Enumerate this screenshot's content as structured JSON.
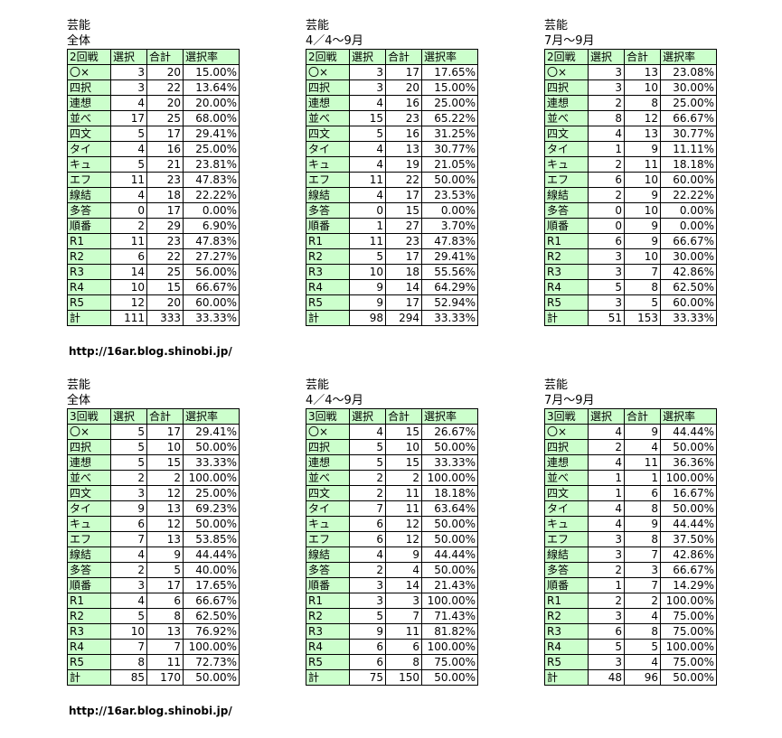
{
  "blocks": [
    {
      "genre": "芸能",
      "period": "全体",
      "header": [
        "2回戦",
        "選択",
        "合計",
        "選択率"
      ],
      "rows": [
        [
          "〇×",
          "3",
          "20",
          "15.00%"
        ],
        [
          "四択",
          "3",
          "22",
          "13.64%"
        ],
        [
          "連想",
          "4",
          "20",
          "20.00%"
        ],
        [
          "並べ",
          "17",
          "25",
          "68.00%"
        ],
        [
          "四文",
          "5",
          "17",
          "29.41%"
        ],
        [
          "タイ",
          "4",
          "16",
          "25.00%"
        ],
        [
          "キュ",
          "5",
          "21",
          "23.81%"
        ],
        [
          "エフ",
          "11",
          "23",
          "47.83%"
        ],
        [
          "線結",
          "4",
          "18",
          "22.22%"
        ],
        [
          "多答",
          "0",
          "17",
          "0.00%"
        ],
        [
          "順番",
          "2",
          "29",
          "6.90%"
        ],
        [
          "R1",
          "11",
          "23",
          "47.83%"
        ],
        [
          "R2",
          "6",
          "22",
          "27.27%"
        ],
        [
          "R3",
          "14",
          "25",
          "56.00%"
        ],
        [
          "R4",
          "10",
          "15",
          "66.67%"
        ],
        [
          "R5",
          "12",
          "20",
          "60.00%"
        ],
        [
          "計",
          "111",
          "333",
          "33.33%"
        ]
      ]
    },
    {
      "genre": "芸能",
      "period": "4／4～9月",
      "header": [
        "2回戦",
        "選択",
        "合計",
        "選択率"
      ],
      "rows": [
        [
          "〇×",
          "3",
          "17",
          "17.65%"
        ],
        [
          "四択",
          "3",
          "20",
          "15.00%"
        ],
        [
          "連想",
          "4",
          "16",
          "25.00%"
        ],
        [
          "並べ",
          "15",
          "23",
          "65.22%"
        ],
        [
          "四文",
          "5",
          "16",
          "31.25%"
        ],
        [
          "タイ",
          "4",
          "13",
          "30.77%"
        ],
        [
          "キュ",
          "4",
          "19",
          "21.05%"
        ],
        [
          "エフ",
          "11",
          "22",
          "50.00%"
        ],
        [
          "線結",
          "4",
          "17",
          "23.53%"
        ],
        [
          "多答",
          "0",
          "15",
          "0.00%"
        ],
        [
          "順番",
          "1",
          "27",
          "3.70%"
        ],
        [
          "R1",
          "11",
          "23",
          "47.83%"
        ],
        [
          "R2",
          "5",
          "17",
          "29.41%"
        ],
        [
          "R3",
          "10",
          "18",
          "55.56%"
        ],
        [
          "R4",
          "9",
          "14",
          "64.29%"
        ],
        [
          "R5",
          "9",
          "17",
          "52.94%"
        ],
        [
          "計",
          "98",
          "294",
          "33.33%"
        ]
      ]
    },
    {
      "genre": "芸能",
      "period": "7月～9月",
      "header": [
        "2回戦",
        "選択",
        "合計",
        "選択率"
      ],
      "rows": [
        [
          "〇×",
          "3",
          "13",
          "23.08%"
        ],
        [
          "四択",
          "3",
          "10",
          "30.00%"
        ],
        [
          "連想",
          "2",
          "8",
          "25.00%"
        ],
        [
          "並べ",
          "8",
          "12",
          "66.67%"
        ],
        [
          "四文",
          "4",
          "13",
          "30.77%"
        ],
        [
          "タイ",
          "1",
          "9",
          "11.11%"
        ],
        [
          "キュ",
          "2",
          "11",
          "18.18%"
        ],
        [
          "エフ",
          "6",
          "10",
          "60.00%"
        ],
        [
          "線結",
          "2",
          "9",
          "22.22%"
        ],
        [
          "多答",
          "0",
          "10",
          "0.00%"
        ],
        [
          "順番",
          "0",
          "9",
          "0.00%"
        ],
        [
          "R1",
          "6",
          "9",
          "66.67%"
        ],
        [
          "R2",
          "3",
          "10",
          "30.00%"
        ],
        [
          "R3",
          "3",
          "7",
          "42.86%"
        ],
        [
          "R4",
          "5",
          "8",
          "62.50%"
        ],
        [
          "R5",
          "3",
          "5",
          "60.00%"
        ],
        [
          "計",
          "51",
          "153",
          "33.33%"
        ]
      ]
    },
    {
      "genre": "芸能",
      "period": "全体",
      "header": [
        "3回戦",
        "選択",
        "合計",
        "選択率"
      ],
      "rows": [
        [
          "〇×",
          "5",
          "17",
          "29.41%"
        ],
        [
          "四択",
          "5",
          "10",
          "50.00%"
        ],
        [
          "連想",
          "5",
          "15",
          "33.33%"
        ],
        [
          "並べ",
          "2",
          "2",
          "100.00%"
        ],
        [
          "四文",
          "3",
          "12",
          "25.00%"
        ],
        [
          "タイ",
          "9",
          "13",
          "69.23%"
        ],
        [
          "キュ",
          "6",
          "12",
          "50.00%"
        ],
        [
          "エフ",
          "7",
          "13",
          "53.85%"
        ],
        [
          "線結",
          "4",
          "9",
          "44.44%"
        ],
        [
          "多答",
          "2",
          "5",
          "40.00%"
        ],
        [
          "順番",
          "3",
          "17",
          "17.65%"
        ],
        [
          "R1",
          "4",
          "6",
          "66.67%"
        ],
        [
          "R2",
          "5",
          "8",
          "62.50%"
        ],
        [
          "R3",
          "10",
          "13",
          "76.92%"
        ],
        [
          "R4",
          "7",
          "7",
          "100.00%"
        ],
        [
          "R5",
          "8",
          "11",
          "72.73%"
        ],
        [
          "計",
          "85",
          "170",
          "50.00%"
        ]
      ]
    },
    {
      "genre": "芸能",
      "period": "4／4～9月",
      "header": [
        "3回戦",
        "選択",
        "合計",
        "選択率"
      ],
      "rows": [
        [
          "〇×",
          "4",
          "15",
          "26.67%"
        ],
        [
          "四択",
          "5",
          "10",
          "50.00%"
        ],
        [
          "連想",
          "5",
          "15",
          "33.33%"
        ],
        [
          "並べ",
          "2",
          "2",
          "100.00%"
        ],
        [
          "四文",
          "2",
          "11",
          "18.18%"
        ],
        [
          "タイ",
          "7",
          "11",
          "63.64%"
        ],
        [
          "キュ",
          "6",
          "12",
          "50.00%"
        ],
        [
          "エフ",
          "6",
          "12",
          "50.00%"
        ],
        [
          "線結",
          "4",
          "9",
          "44.44%"
        ],
        [
          "多答",
          "2",
          "4",
          "50.00%"
        ],
        [
          "順番",
          "3",
          "14",
          "21.43%"
        ],
        [
          "R1",
          "3",
          "3",
          "100.00%"
        ],
        [
          "R2",
          "5",
          "7",
          "71.43%"
        ],
        [
          "R3",
          "9",
          "11",
          "81.82%"
        ],
        [
          "R4",
          "6",
          "6",
          "100.00%"
        ],
        [
          "R5",
          "6",
          "8",
          "75.00%"
        ],
        [
          "計",
          "75",
          "150",
          "50.00%"
        ]
      ]
    },
    {
      "genre": "芸能",
      "period": "7月～9月",
      "header": [
        "3回戦",
        "選択",
        "合計",
        "選択率"
      ],
      "rows": [
        [
          "〇×",
          "4",
          "9",
          "44.44%"
        ],
        [
          "四択",
          "2",
          "4",
          "50.00%"
        ],
        [
          "連想",
          "4",
          "11",
          "36.36%"
        ],
        [
          "並べ",
          "1",
          "1",
          "100.00%"
        ],
        [
          "四文",
          "1",
          "6",
          "16.67%"
        ],
        [
          "タイ",
          "4",
          "8",
          "50.00%"
        ],
        [
          "キュ",
          "4",
          "9",
          "44.44%"
        ],
        [
          "エフ",
          "3",
          "8",
          "37.50%"
        ],
        [
          "線結",
          "3",
          "7",
          "42.86%"
        ],
        [
          "多答",
          "2",
          "3",
          "66.67%"
        ],
        [
          "順番",
          "1",
          "7",
          "14.29%"
        ],
        [
          "R1",
          "2",
          "2",
          "100.00%"
        ],
        [
          "R2",
          "3",
          "4",
          "75.00%"
        ],
        [
          "R3",
          "6",
          "8",
          "75.00%"
        ],
        [
          "R4",
          "5",
          "5",
          "100.00%"
        ],
        [
          "R5",
          "3",
          "4",
          "75.00%"
        ],
        [
          "計",
          "48",
          "96",
          "50.00%"
        ]
      ]
    }
  ],
  "url_texts": [
    "http://16ar.blog.shinobi.jp/",
    "http://16ar.blog.shinobi.jp/"
  ],
  "colors": {
    "label_cell_bg": "#ccffcc",
    "value_cell_bg": "#ffffff",
    "border": "#000000"
  }
}
